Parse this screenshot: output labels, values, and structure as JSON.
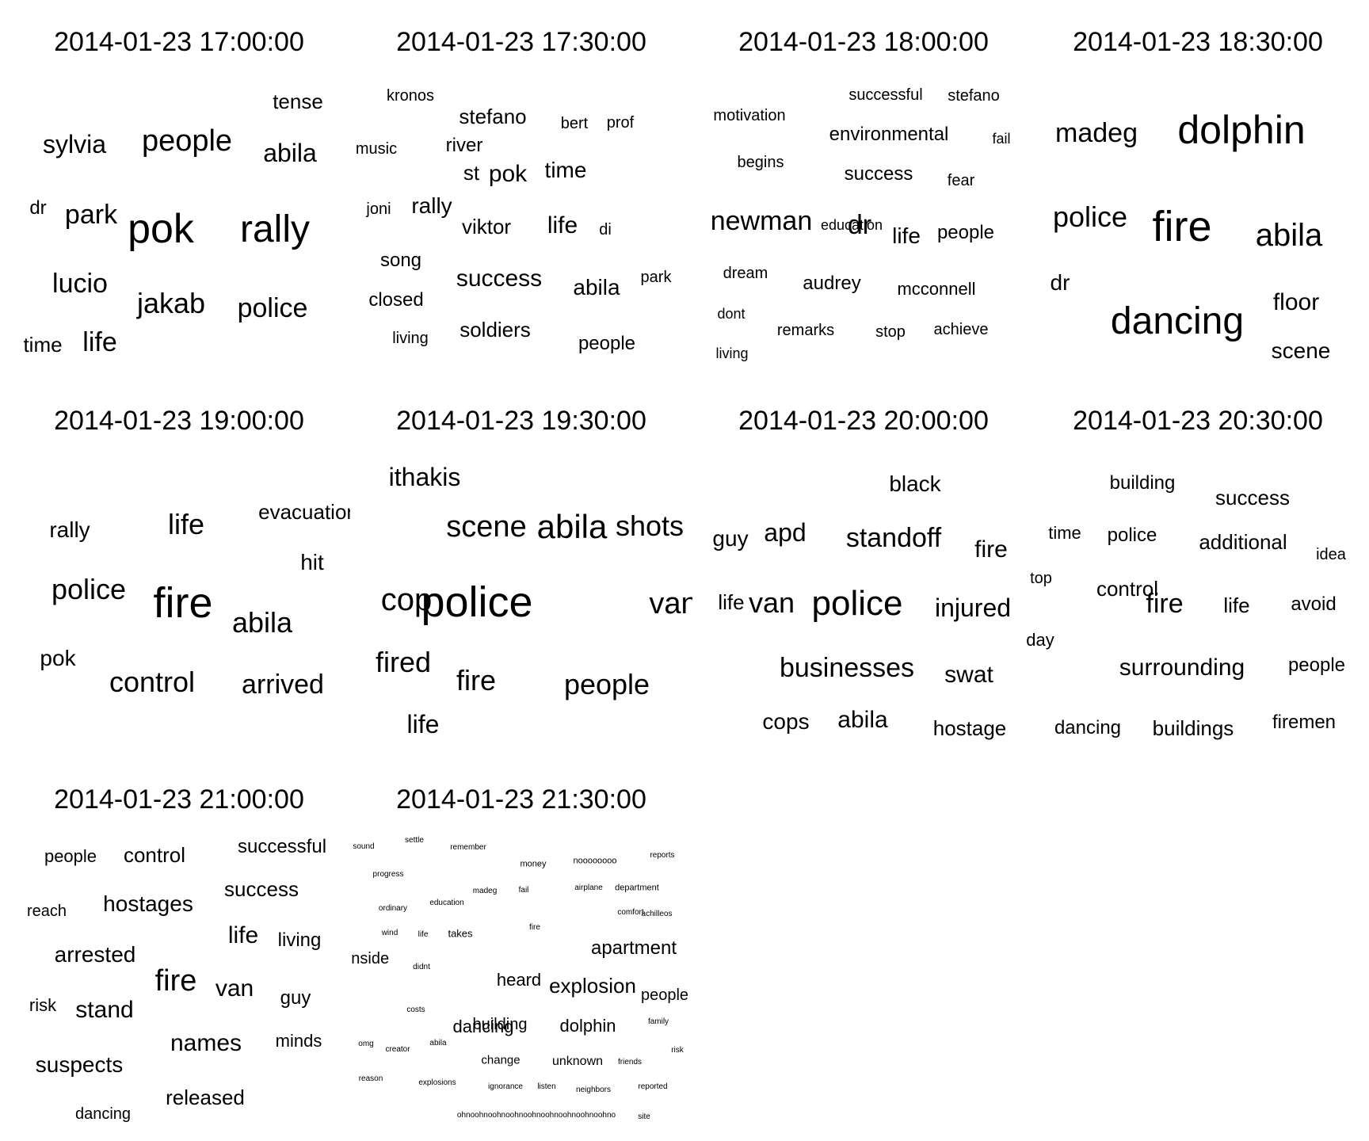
{
  "chart_data": {
    "type": "wordcloud",
    "panels": [
      {
        "title": "2014-01-23 17:00:00",
        "words": [
          {
            "text": "tense",
            "weight": 2
          },
          {
            "text": "sylvia",
            "weight": 3
          },
          {
            "text": "people",
            "weight": 4
          },
          {
            "text": "abila",
            "weight": 3
          },
          {
            "text": "dr",
            "weight": 2
          },
          {
            "text": "park",
            "weight": 3
          },
          {
            "text": "pok",
            "weight": 6
          },
          {
            "text": "rally",
            "weight": 5
          },
          {
            "text": "lucio",
            "weight": 3
          },
          {
            "text": "jakab",
            "weight": 3
          },
          {
            "text": "police",
            "weight": 3
          },
          {
            "text": "time",
            "weight": 2
          },
          {
            "text": "life",
            "weight": 3
          }
        ]
      },
      {
        "title": "2014-01-23 17:30:00",
        "words": [
          {
            "text": "kronos",
            "weight": 1
          },
          {
            "text": "stefano",
            "weight": 2
          },
          {
            "text": "bert",
            "weight": 1
          },
          {
            "text": "prof",
            "weight": 1
          },
          {
            "text": "music",
            "weight": 1
          },
          {
            "text": "river",
            "weight": 2
          },
          {
            "text": "st",
            "weight": 2
          },
          {
            "text": "pok",
            "weight": 2
          },
          {
            "text": "time",
            "weight": 2
          },
          {
            "text": "joni",
            "weight": 1
          },
          {
            "text": "rally",
            "weight": 2
          },
          {
            "text": "viktor",
            "weight": 2
          },
          {
            "text": "life",
            "weight": 2
          },
          {
            "text": "di",
            "weight": 1
          },
          {
            "text": "song",
            "weight": 2
          },
          {
            "text": "success",
            "weight": 2
          },
          {
            "text": "abila",
            "weight": 2
          },
          {
            "text": "park",
            "weight": 1
          },
          {
            "text": "closed",
            "weight": 2
          },
          {
            "text": "soldiers",
            "weight": 2
          },
          {
            "text": "living",
            "weight": 1
          },
          {
            "text": "people",
            "weight": 2
          }
        ]
      },
      {
        "title": "2014-01-23 18:00:00",
        "words": [
          {
            "text": "successful",
            "weight": 1
          },
          {
            "text": "stefano",
            "weight": 1
          },
          {
            "text": "motivation",
            "weight": 1
          },
          {
            "text": "environmental",
            "weight": 2
          },
          {
            "text": "fail",
            "weight": 1
          },
          {
            "text": "begins",
            "weight": 1
          },
          {
            "text": "success",
            "weight": 2
          },
          {
            "text": "fear",
            "weight": 1
          },
          {
            "text": "newman",
            "weight": 3
          },
          {
            "text": "education",
            "weight": 1
          },
          {
            "text": "dr",
            "weight": 3
          },
          {
            "text": "life",
            "weight": 2
          },
          {
            "text": "people",
            "weight": 2
          },
          {
            "text": "dream",
            "weight": 1
          },
          {
            "text": "audrey",
            "weight": 2
          },
          {
            "text": "mcconnell",
            "weight": 2
          },
          {
            "text": "dont",
            "weight": 1
          },
          {
            "text": "remarks",
            "weight": 1
          },
          {
            "text": "stop",
            "weight": 1
          },
          {
            "text": "achieve",
            "weight": 1
          },
          {
            "text": "living",
            "weight": 1
          }
        ]
      },
      {
        "title": "2014-01-23 18:30:00",
        "words": [
          {
            "text": "madeg",
            "weight": 3
          },
          {
            "text": "dolphin",
            "weight": 5
          },
          {
            "text": "police",
            "weight": 3
          },
          {
            "text": "fire",
            "weight": 6
          },
          {
            "text": "abila",
            "weight": 4
          },
          {
            "text": "dr",
            "weight": 2
          },
          {
            "text": "dancing",
            "weight": 5
          },
          {
            "text": "floor",
            "weight": 2
          },
          {
            "text": "scene",
            "weight": 2
          }
        ]
      },
      {
        "title": "2014-01-23 19:00:00",
        "words": [
          {
            "text": "rally",
            "weight": 2
          },
          {
            "text": "life",
            "weight": 2
          },
          {
            "text": "evacuation",
            "weight": 3
          },
          {
            "text": "hit",
            "weight": 2
          },
          {
            "text": "police",
            "weight": 3
          },
          {
            "text": "fire",
            "weight": 6
          },
          {
            "text": "abila",
            "weight": 3
          },
          {
            "text": "pok",
            "weight": 2
          },
          {
            "text": "control",
            "weight": 3
          },
          {
            "text": "arrived",
            "weight": 3
          }
        ]
      },
      {
        "title": "2014-01-23 19:30:00",
        "words": [
          {
            "text": "ithakis",
            "weight": 2
          },
          {
            "text": "scene",
            "weight": 3
          },
          {
            "text": "abila",
            "weight": 4
          },
          {
            "text": "shots",
            "weight": 3
          },
          {
            "text": "cop",
            "weight": 3
          },
          {
            "text": "police",
            "weight": 6
          },
          {
            "text": "van",
            "weight": 3
          },
          {
            "text": "fired",
            "weight": 3
          },
          {
            "text": "fire",
            "weight": 3
          },
          {
            "text": "people",
            "weight": 3
          },
          {
            "text": "life",
            "weight": 2
          }
        ]
      },
      {
        "title": "2014-01-23 20:00:00",
        "words": [
          {
            "text": "black",
            "weight": 2
          },
          {
            "text": "guy",
            "weight": 2
          },
          {
            "text": "apd",
            "weight": 2
          },
          {
            "text": "standoff",
            "weight": 3
          },
          {
            "text": "fire",
            "weight": 2
          },
          {
            "text": "life",
            "weight": 2
          },
          {
            "text": "van",
            "weight": 3
          },
          {
            "text": "police",
            "weight": 5
          },
          {
            "text": "injured",
            "weight": 3
          },
          {
            "text": "businesses",
            "weight": 3
          },
          {
            "text": "swat",
            "weight": 2
          },
          {
            "text": "cops",
            "weight": 2
          },
          {
            "text": "abila",
            "weight": 2
          },
          {
            "text": "hostage",
            "weight": 2
          }
        ]
      },
      {
        "title": "2014-01-23 20:30:00",
        "words": [
          {
            "text": "building",
            "weight": 2
          },
          {
            "text": "success",
            "weight": 2
          },
          {
            "text": "time",
            "weight": 1
          },
          {
            "text": "police",
            "weight": 2
          },
          {
            "text": "additional",
            "weight": 2
          },
          {
            "text": "idea",
            "weight": 1
          },
          {
            "text": "top",
            "weight": 1
          },
          {
            "text": "control",
            "weight": 2
          },
          {
            "text": "fire",
            "weight": 4
          },
          {
            "text": "life",
            "weight": 2
          },
          {
            "text": "avoid",
            "weight": 2
          },
          {
            "text": "day",
            "weight": 1
          },
          {
            "text": "surrounding",
            "weight": 2
          },
          {
            "text": "people",
            "weight": 2
          },
          {
            "text": "dancing",
            "weight": 2
          },
          {
            "text": "buildings",
            "weight": 2
          },
          {
            "text": "firemen",
            "weight": 2
          }
        ]
      },
      {
        "title": "2014-01-23 21:00:00",
        "words": [
          {
            "text": "people",
            "weight": 2
          },
          {
            "text": "control",
            "weight": 2
          },
          {
            "text": "successful",
            "weight": 2
          },
          {
            "text": "success",
            "weight": 2
          },
          {
            "text": "reach",
            "weight": 1
          },
          {
            "text": "hostages",
            "weight": 2
          },
          {
            "text": "life",
            "weight": 2
          },
          {
            "text": "living",
            "weight": 2
          },
          {
            "text": "arrested",
            "weight": 2
          },
          {
            "text": "fire",
            "weight": 3
          },
          {
            "text": "van",
            "weight": 3
          },
          {
            "text": "risk",
            "weight": 1
          },
          {
            "text": "stand",
            "weight": 2
          },
          {
            "text": "guy",
            "weight": 2
          },
          {
            "text": "names",
            "weight": 2
          },
          {
            "text": "minds",
            "weight": 2
          },
          {
            "text": "suspects",
            "weight": 2
          },
          {
            "text": "released",
            "weight": 2
          },
          {
            "text": "dancing",
            "weight": 1
          }
        ]
      },
      {
        "title": "2014-01-23 21:30:00",
        "words": [
          {
            "text": "sound",
            "weight": 1
          },
          {
            "text": "settle",
            "weight": 1
          },
          {
            "text": "remember",
            "weight": 1
          },
          {
            "text": "reports",
            "weight": 1
          },
          {
            "text": "money",
            "weight": 1
          },
          {
            "text": "noooooooo",
            "weight": 1
          },
          {
            "text": "progress",
            "weight": 1
          },
          {
            "text": "madeg",
            "weight": 1
          },
          {
            "text": "fail",
            "weight": 1
          },
          {
            "text": "airplane",
            "weight": 1
          },
          {
            "text": "department",
            "weight": 1
          },
          {
            "text": "ordinary",
            "weight": 1
          },
          {
            "text": "education",
            "weight": 1
          },
          {
            "text": "comfort",
            "weight": 1
          },
          {
            "text": "achilleos",
            "weight": 1
          },
          {
            "text": "wind",
            "weight": 1
          },
          {
            "text": "life",
            "weight": 1
          },
          {
            "text": "takes",
            "weight": 1
          },
          {
            "text": "fire",
            "weight": 1
          },
          {
            "text": "apartment",
            "weight": 2
          },
          {
            "text": "inside",
            "weight": 2
          },
          {
            "text": "didnt",
            "weight": 1
          },
          {
            "text": "heard",
            "weight": 2
          },
          {
            "text": "explosion",
            "weight": 2
          },
          {
            "text": "people",
            "weight": 2
          },
          {
            "text": "costs",
            "weight": 1
          },
          {
            "text": "building",
            "weight": 2
          },
          {
            "text": "dancing",
            "weight": 2
          },
          {
            "text": "dolphin",
            "weight": 2
          },
          {
            "text": "family",
            "weight": 1
          },
          {
            "text": "omg",
            "weight": 1
          },
          {
            "text": "creator",
            "weight": 1
          },
          {
            "text": "abila",
            "weight": 1
          },
          {
            "text": "risk",
            "weight": 1
          },
          {
            "text": "change",
            "weight": 1
          },
          {
            "text": "unknown",
            "weight": 1
          },
          {
            "text": "friends",
            "weight": 1
          },
          {
            "text": "reason",
            "weight": 1
          },
          {
            "text": "explosions",
            "weight": 1
          },
          {
            "text": "ignorance",
            "weight": 1
          },
          {
            "text": "listen",
            "weight": 1
          },
          {
            "text": "neighbors",
            "weight": 1
          },
          {
            "text": "reported",
            "weight": 1
          },
          {
            "text": "ohnoohnoohnoohnoohnoohnoohnoohnoohno",
            "weight": 1
          },
          {
            "text": "site",
            "weight": 1
          }
        ]
      }
    ]
  }
}
